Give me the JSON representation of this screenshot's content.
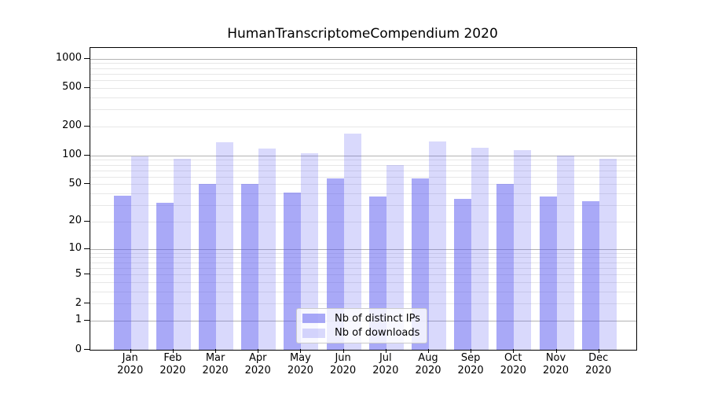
{
  "title": "HumanTranscriptomeCompendium 2020",
  "colors": {
    "bar_ips_fill": "rgba(84,84,240,0.50)",
    "bar_downloads_fill": "rgba(84,84,240,0.22)",
    "grid_major": "#b2b2b2",
    "grid_minor": "#e7e7e7",
    "axis_frame": "#000000",
    "legend_border": "#cbcbcb"
  },
  "legend": {
    "items": [
      {
        "label": "Nb of distinct IPs",
        "color": "rgba(84,84,240,0.50)"
      },
      {
        "label": "Nb of downloads",
        "color": "rgba(84,84,240,0.22)"
      }
    ]
  },
  "chart_data": {
    "type": "bar",
    "title": "HumanTranscriptomeCompendium 2020",
    "xlabel": "",
    "ylabel": "",
    "x_year": "2020",
    "categories": [
      "Jan",
      "Feb",
      "Mar",
      "Apr",
      "May",
      "Jun",
      "Jul",
      "Aug",
      "Sep",
      "Oct",
      "Nov",
      "Dec"
    ],
    "series": [
      {
        "name": "Nb of distinct IPs",
        "values": [
          38,
          32,
          50,
          50,
          41,
          58,
          37,
          57,
          35,
          50,
          37,
          33
        ]
      },
      {
        "name": "Nb of downloads",
        "values": [
          98,
          93,
          138,
          118,
          105,
          167,
          79,
          139,
          119,
          113,
          99,
          92
        ]
      }
    ],
    "y_scale": "log1p (symlog-like, linear 0-1 then log)",
    "y_tick_values": [
      0,
      1,
      2,
      5,
      10,
      20,
      50,
      100,
      200,
      500,
      1000
    ],
    "y_major_gridlines": [
      1,
      10,
      100,
      1000
    ],
    "y_minor_gridlines": [
      3,
      4,
      6,
      7,
      8,
      9,
      30,
      40,
      60,
      70,
      80,
      90,
      300,
      400,
      600,
      700,
      800,
      900
    ],
    "ylim": [
      0,
      1290
    ],
    "grid": "on",
    "legend_position": "lower center (inside axes)"
  }
}
